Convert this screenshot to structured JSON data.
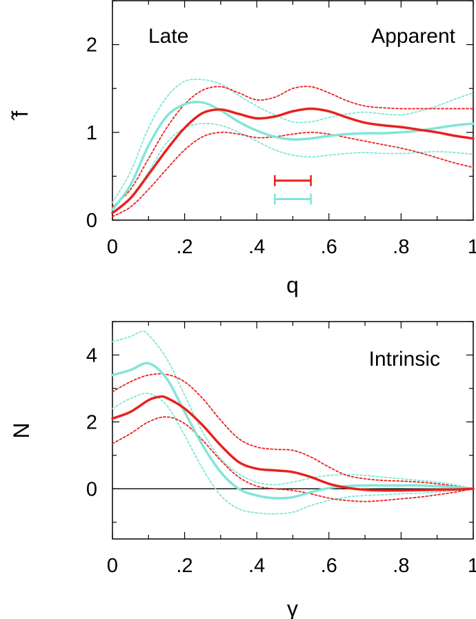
{
  "chart_data": [
    {
      "type": "line",
      "panel": "top",
      "xlabel": "q",
      "ylabel": "̂f",
      "xlim": [
        0,
        1
      ],
      "ylim": [
        0,
        2.5
      ],
      "xticks": [
        0,
        0.2,
        0.4,
        0.6,
        0.8,
        1
      ],
      "xtick_labels": [
        "0",
        ".2",
        ".4",
        ".6",
        ".8",
        "1"
      ],
      "yticks": [
        0,
        1,
        2
      ],
      "ytick_labels": [
        "0",
        "1",
        "2"
      ],
      "annotations": [
        "Late",
        "Apparent"
      ],
      "colors": {
        "red": "#e8211d",
        "cyan": "#80e6d8"
      },
      "series": [
        {
          "name": "cyan-upper",
          "color": "cyan",
          "style": "dotted",
          "x": [
            0,
            0.05,
            0.1,
            0.15,
            0.2,
            0.25,
            0.3,
            0.35,
            0.4,
            0.45,
            0.5,
            0.55,
            0.6,
            0.65,
            0.7,
            0.75,
            0.8,
            0.85,
            0.9,
            0.95,
            1.0
          ],
          "y": [
            0.2,
            0.55,
            1.05,
            1.4,
            1.58,
            1.6,
            1.55,
            1.42,
            1.3,
            1.2,
            1.12,
            1.12,
            1.17,
            1.21,
            1.23,
            1.21,
            1.2,
            1.24,
            1.3,
            1.38,
            1.45
          ]
        },
        {
          "name": "cyan-mean",
          "color": "cyan",
          "style": "solid",
          "x": [
            0,
            0.05,
            0.1,
            0.15,
            0.2,
            0.25,
            0.3,
            0.35,
            0.4,
            0.45,
            0.5,
            0.55,
            0.6,
            0.65,
            0.7,
            0.75,
            0.8,
            0.85,
            0.9,
            0.95,
            1.0
          ],
          "y": [
            0.12,
            0.4,
            0.85,
            1.18,
            1.32,
            1.34,
            1.25,
            1.12,
            1.02,
            0.95,
            0.92,
            0.93,
            0.96,
            0.98,
            0.99,
            0.99,
            1.0,
            1.02,
            1.05,
            1.08,
            1.1
          ]
        },
        {
          "name": "cyan-lower",
          "color": "cyan",
          "style": "dotted",
          "x": [
            0,
            0.05,
            0.1,
            0.15,
            0.2,
            0.25,
            0.3,
            0.35,
            0.4,
            0.45,
            0.5,
            0.55,
            0.6,
            0.65,
            0.7,
            0.75,
            0.8,
            0.85,
            0.9,
            0.95,
            1.0
          ],
          "y": [
            0.08,
            0.25,
            0.55,
            0.88,
            1.05,
            1.1,
            1.08,
            1.0,
            0.9,
            0.8,
            0.74,
            0.72,
            0.74,
            0.76,
            0.77,
            0.76,
            0.76,
            0.77,
            0.78,
            0.77,
            0.75
          ]
        },
        {
          "name": "red-upper",
          "color": "red",
          "style": "dotted",
          "x": [
            0,
            0.05,
            0.1,
            0.15,
            0.2,
            0.25,
            0.3,
            0.35,
            0.4,
            0.45,
            0.5,
            0.55,
            0.6,
            0.65,
            0.7,
            0.75,
            0.8,
            0.85,
            0.9,
            0.95,
            1.0
          ],
          "y": [
            0.15,
            0.35,
            0.7,
            1.05,
            1.32,
            1.48,
            1.52,
            1.45,
            1.37,
            1.4,
            1.5,
            1.52,
            1.45,
            1.36,
            1.3,
            1.28,
            1.27,
            1.27,
            1.27,
            1.27,
            1.27
          ]
        },
        {
          "name": "red-mean",
          "color": "red",
          "style": "solid",
          "x": [
            0,
            0.05,
            0.1,
            0.15,
            0.2,
            0.25,
            0.3,
            0.35,
            0.4,
            0.45,
            0.5,
            0.55,
            0.6,
            0.65,
            0.7,
            0.75,
            0.8,
            0.85,
            0.9,
            0.95,
            1.0
          ],
          "y": [
            0.08,
            0.25,
            0.52,
            0.8,
            1.05,
            1.22,
            1.26,
            1.21,
            1.16,
            1.18,
            1.24,
            1.27,
            1.24,
            1.17,
            1.11,
            1.08,
            1.06,
            1.03,
            1.0,
            0.96,
            0.93
          ]
        },
        {
          "name": "red-lower",
          "color": "red",
          "style": "dotted",
          "x": [
            0,
            0.05,
            0.1,
            0.15,
            0.2,
            0.25,
            0.3,
            0.35,
            0.4,
            0.45,
            0.5,
            0.55,
            0.6,
            0.65,
            0.7,
            0.75,
            0.8,
            0.85,
            0.9,
            0.95,
            1.0
          ],
          "y": [
            0.04,
            0.15,
            0.35,
            0.58,
            0.8,
            0.95,
            1.0,
            0.98,
            0.94,
            0.95,
            0.98,
            1.0,
            0.98,
            0.94,
            0.9,
            0.86,
            0.82,
            0.77,
            0.71,
            0.65,
            0.6
          ]
        }
      ],
      "error_bars": [
        {
          "color": "red",
          "x_from": 0.45,
          "x_to": 0.55,
          "y": 0.45
        },
        {
          "color": "cyan",
          "x_from": 0.45,
          "x_to": 0.55,
          "y": 0.24
        }
      ]
    },
    {
      "type": "line",
      "panel": "bottom",
      "xlabel": "γ",
      "ylabel": "N",
      "xlim": [
        0,
        1
      ],
      "ylim": [
        -1.5,
        5
      ],
      "xticks": [
        0,
        0.2,
        0.4,
        0.6,
        0.8,
        1
      ],
      "xtick_labels": [
        "0",
        ".2",
        ".4",
        ".6",
        ".8",
        "1"
      ],
      "yticks": [
        0,
        2,
        4
      ],
      "ytick_labels": [
        "0",
        "2",
        "4"
      ],
      "annotations": [
        "Intrinsic"
      ],
      "zero_line": true,
      "colors": {
        "red": "#e8211d",
        "cyan": "#80e6d8"
      },
      "series": [
        {
          "name": "cyan-upper",
          "color": "cyan",
          "style": "dotted",
          "x": [
            0,
            0.05,
            0.08,
            0.1,
            0.15,
            0.2,
            0.25,
            0.3,
            0.35,
            0.4,
            0.45,
            0.5,
            0.55,
            0.6,
            0.65,
            0.7,
            0.75,
            0.8,
            0.85,
            0.9,
            0.95,
            1.0
          ],
          "y": [
            4.4,
            4.55,
            4.7,
            4.6,
            3.9,
            2.8,
            1.7,
            0.9,
            0.45,
            0.2,
            0.12,
            0.2,
            0.32,
            0.4,
            0.42,
            0.4,
            0.35,
            0.3,
            0.25,
            0.2,
            0.12,
            0.0
          ]
        },
        {
          "name": "cyan-mean",
          "color": "cyan",
          "style": "solid",
          "x": [
            0,
            0.05,
            0.1,
            0.15,
            0.2,
            0.25,
            0.3,
            0.35,
            0.4,
            0.45,
            0.5,
            0.55,
            0.6,
            0.65,
            0.7,
            0.75,
            0.8,
            0.85,
            0.9,
            0.95,
            1.0
          ],
          "y": [
            3.4,
            3.55,
            3.75,
            3.3,
            2.3,
            1.3,
            0.5,
            0.0,
            -0.2,
            -0.28,
            -0.25,
            -0.1,
            0.02,
            0.08,
            0.1,
            0.1,
            0.1,
            0.1,
            0.08,
            0.05,
            0.0
          ]
        },
        {
          "name": "cyan-lower",
          "color": "cyan",
          "style": "dotted",
          "x": [
            0,
            0.05,
            0.1,
            0.15,
            0.2,
            0.25,
            0.3,
            0.35,
            0.4,
            0.45,
            0.5,
            0.55,
            0.6,
            0.65,
            0.7,
            0.75,
            0.8,
            0.85,
            0.9,
            0.95,
            1.0
          ],
          "y": [
            2.4,
            2.7,
            2.85,
            2.5,
            1.6,
            0.6,
            -0.2,
            -0.6,
            -0.72,
            -0.75,
            -0.7,
            -0.5,
            -0.35,
            -0.25,
            -0.2,
            -0.18,
            -0.15,
            -0.13,
            -0.1,
            -0.05,
            0.0
          ]
        },
        {
          "name": "red-upper",
          "color": "red",
          "style": "dotted",
          "x": [
            0,
            0.05,
            0.1,
            0.15,
            0.2,
            0.25,
            0.3,
            0.35,
            0.4,
            0.45,
            0.5,
            0.55,
            0.6,
            0.65,
            0.7,
            0.75,
            0.8,
            0.85,
            0.9,
            0.95,
            1.0
          ],
          "y": [
            2.9,
            3.2,
            3.4,
            3.42,
            3.2,
            2.7,
            2.05,
            1.5,
            1.25,
            1.18,
            1.15,
            0.95,
            0.65,
            0.4,
            0.3,
            0.25,
            0.23,
            0.2,
            0.15,
            0.08,
            0.0
          ]
        },
        {
          "name": "red-mean",
          "color": "red",
          "style": "solid",
          "x": [
            0,
            0.05,
            0.1,
            0.13,
            0.15,
            0.2,
            0.25,
            0.3,
            0.35,
            0.4,
            0.45,
            0.5,
            0.55,
            0.6,
            0.65,
            0.7,
            0.75,
            0.8,
            0.85,
            0.9,
            0.95,
            1.0
          ],
          "y": [
            2.1,
            2.3,
            2.65,
            2.75,
            2.72,
            2.4,
            1.9,
            1.3,
            0.8,
            0.6,
            0.55,
            0.5,
            0.35,
            0.15,
            0.03,
            -0.03,
            -0.05,
            -0.05,
            -0.04,
            -0.03,
            -0.02,
            0.0
          ]
        },
        {
          "name": "red-lower",
          "color": "red",
          "style": "dotted",
          "x": [
            0,
            0.05,
            0.1,
            0.15,
            0.2,
            0.25,
            0.3,
            0.35,
            0.4,
            0.45,
            0.5,
            0.55,
            0.6,
            0.65,
            0.7,
            0.75,
            0.8,
            0.85,
            0.9,
            0.95,
            1.0
          ],
          "y": [
            1.35,
            1.65,
            2.0,
            2.15,
            1.95,
            1.45,
            0.85,
            0.35,
            0.08,
            0.0,
            -0.05,
            -0.15,
            -0.28,
            -0.35,
            -0.38,
            -0.35,
            -0.3,
            -0.25,
            -0.18,
            -0.1,
            0.0
          ]
        }
      ]
    }
  ]
}
